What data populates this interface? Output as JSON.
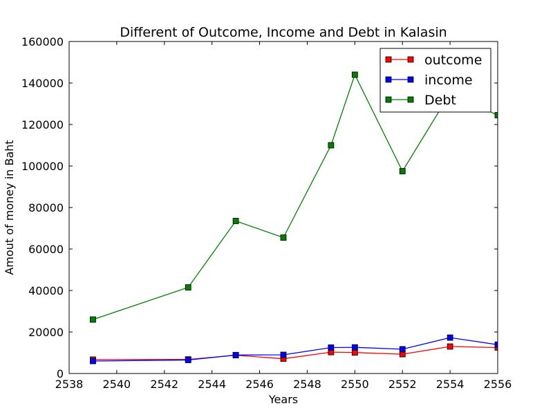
{
  "chart_data": {
    "type": "line",
    "title": "Different of Outcome, Income and Debt in Kalasin",
    "xlabel": "Years",
    "ylabel": "Amout of money in Baht",
    "xlim": [
      2538,
      2556
    ],
    "ylim": [
      0,
      160000
    ],
    "xticks": [
      2538,
      2540,
      2542,
      2544,
      2546,
      2548,
      2550,
      2552,
      2554,
      2556
    ],
    "yticks": [
      0,
      20000,
      40000,
      60000,
      80000,
      100000,
      120000,
      140000,
      160000
    ],
    "grid": false,
    "legend_position": "top-right",
    "x": [
      2539,
      2543,
      2545,
      2547,
      2549,
      2550,
      2552,
      2554,
      2556
    ],
    "series": [
      {
        "name": "outcome",
        "color": "#ff0000",
        "marker": "square",
        "values": [
          6700,
          6800,
          8800,
          7100,
          10300,
          10100,
          9300,
          13000,
          12500
        ]
      },
      {
        "name": "income",
        "color": "#0000ff",
        "marker": "square",
        "values": [
          6000,
          6500,
          8900,
          9000,
          12500,
          12600,
          11700,
          17300,
          13900
        ]
      },
      {
        "name": "Debt",
        "color": "#008000",
        "marker": "square",
        "values": [
          26000,
          41500,
          73500,
          65500,
          110000,
          144000,
          97500,
          135000,
          124500
        ]
      }
    ]
  }
}
